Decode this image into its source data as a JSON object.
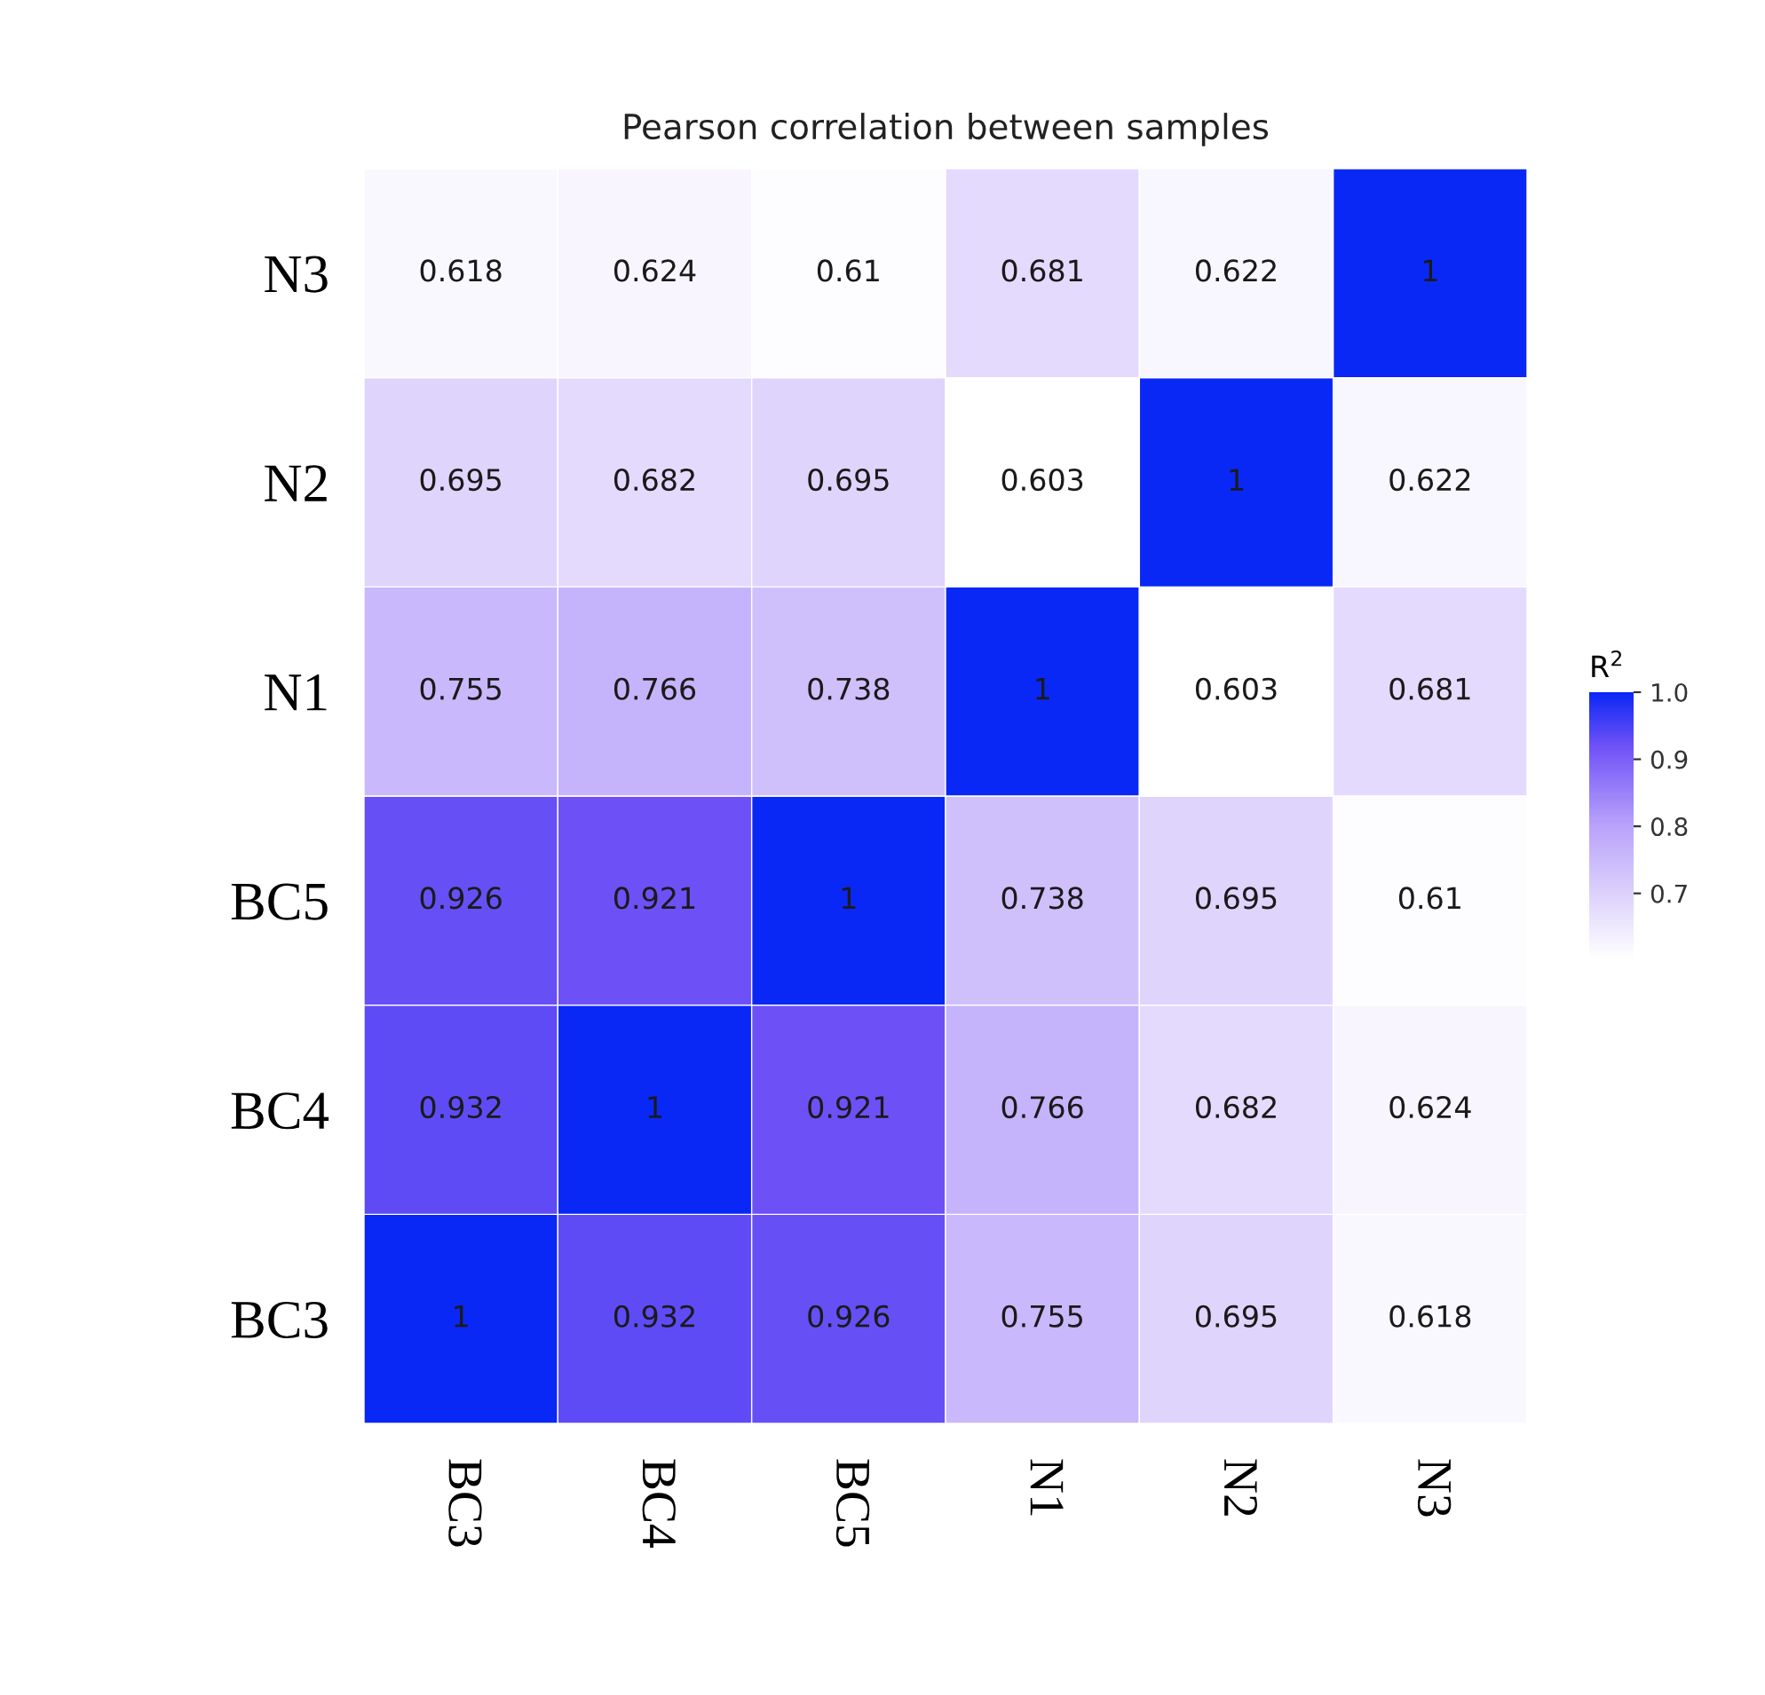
{
  "chart_data": {
    "type": "heatmap",
    "title": "Pearson correlation between samples",
    "clabel": "R$^{2}$",
    "categories": [
      "BC3",
      "BC4",
      "BC5",
      "N1",
      "N2",
      "N3"
    ],
    "y_categories": [
      "N3",
      "N2",
      "N1",
      "BC5",
      "BC4",
      "BC3"
    ],
    "cells": [
      [
        0.618,
        0.624,
        0.61,
        0.681,
        0.622,
        1
      ],
      [
        0.695,
        0.682,
        0.695,
        0.603,
        1,
        0.622
      ],
      [
        0.755,
        0.766,
        0.738,
        1,
        0.603,
        0.681
      ],
      [
        0.926,
        0.921,
        1,
        0.738,
        0.695,
        0.61
      ],
      [
        0.932,
        1,
        0.921,
        0.766,
        0.682,
        0.624
      ],
      [
        1,
        0.932,
        0.926,
        0.755,
        0.695,
        0.618
      ]
    ],
    "data_labels": true,
    "clim": [
      0.603,
      1
    ],
    "cticks": [
      0.7,
      0.8,
      0.9,
      {
        "value": 1,
        "label": "1.0"
      }
    ]
  }
}
